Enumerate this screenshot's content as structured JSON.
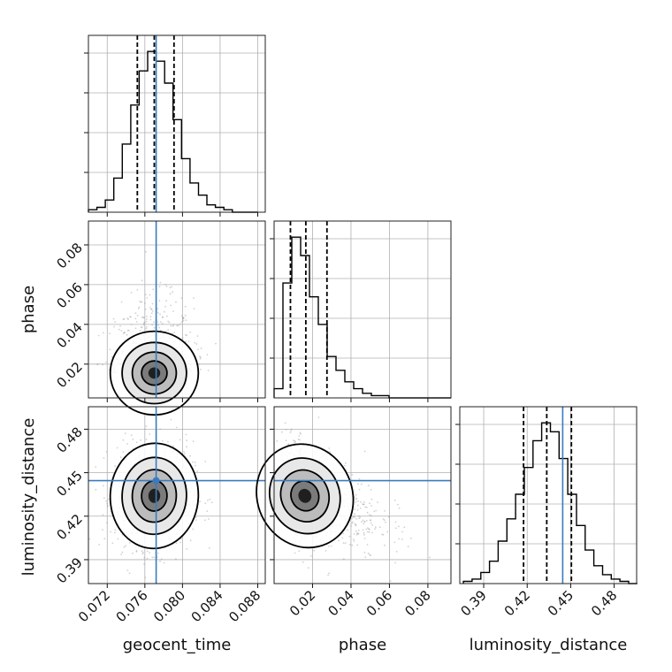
{
  "chart_data": {
    "type": "corner",
    "parameters": [
      "geocent_time",
      "phase",
      "luminosity_distance"
    ],
    "truths": [
      0.0772,
      null,
      0.4445
    ],
    "truth_color": "#3a7bbf",
    "grid": true,
    "histograms": [
      {
        "parameter": "geocent_time",
        "range": [
          0.07,
          0.0888
        ],
        "ticks": [
          0.072,
          0.076,
          0.08,
          0.084,
          0.088
        ],
        "tick_labels": [
          "0.072",
          "0.076",
          "0.080",
          "0.084",
          "0.088"
        ],
        "quantiles": [
          0.0752,
          0.077,
          0.0791
        ],
        "bin_edges": [
          0.07,
          0.0709,
          0.0718,
          0.0727,
          0.0736,
          0.0745,
          0.0754,
          0.0763,
          0.0772,
          0.0781,
          0.079,
          0.0799,
          0.0808,
          0.0817,
          0.0826,
          0.0835,
          0.0844,
          0.0853,
          0.0862,
          0.0871,
          0.088
        ],
        "counts": [
          1,
          2,
          5,
          14,
          28,
          44,
          58,
          66,
          62,
          53,
          38,
          22,
          12,
          7,
          3,
          2,
          1,
          0,
          0,
          0
        ]
      },
      {
        "parameter": "phase",
        "range": [
          0.0,
          0.092
        ],
        "ticks": [
          0.02,
          0.04,
          0.06,
          0.08
        ],
        "tick_labels": [
          "0.02",
          "0.04",
          "0.06",
          "0.08"
        ],
        "quantiles": [
          0.0085,
          0.0165,
          0.0275
        ],
        "bin_edges": [
          0.0,
          0.0046,
          0.0092,
          0.0138,
          0.0184,
          0.023,
          0.0276,
          0.0322,
          0.0368,
          0.0414,
          0.046,
          0.0506,
          0.0552,
          0.0598,
          0.0644,
          0.069,
          0.0736,
          0.0782,
          0.0828,
          0.0874,
          0.092
        ],
        "counts": [
          4,
          50,
          70,
          62,
          44,
          32,
          18,
          12,
          7,
          4,
          2,
          1,
          1,
          0,
          0,
          0,
          0,
          0,
          0,
          0
        ]
      },
      {
        "parameter": "luminosity_distance",
        "range": [
          0.3735,
          0.4955
        ],
        "ticks": [
          0.39,
          0.42,
          0.45,
          0.48
        ],
        "tick_labels": [
          "0.39",
          "0.42",
          "0.45",
          "0.48"
        ],
        "quantiles": [
          0.4175,
          0.4335,
          0.4505
        ],
        "bin_edges": [
          0.376,
          0.382,
          0.388,
          0.394,
          0.4,
          0.406,
          0.412,
          0.418,
          0.424,
          0.43,
          0.436,
          0.442,
          0.448,
          0.454,
          0.46,
          0.466,
          0.472,
          0.478,
          0.484,
          0.49,
          0.496
        ],
        "counts": [
          1,
          2,
          5,
          10,
          19,
          29,
          40,
          52,
          64,
          72,
          68,
          56,
          40,
          26,
          15,
          8,
          4,
          2,
          1,
          0
        ]
      }
    ],
    "pairs": [
      {
        "x": "geocent_time",
        "y": "phase",
        "x_range": [
          0.07,
          0.0888
        ],
        "y_range": [
          0.003,
          0.092
        ],
        "y_ticks": [
          0.02,
          0.04,
          0.06,
          0.08
        ],
        "y_tick_labels": [
          "0.02",
          "0.04",
          "0.06",
          "0.08"
        ],
        "center": [
          0.077,
          0.0155
        ],
        "sigma": [
          0.0018,
          0.009
        ],
        "correlation": 0.0
      },
      {
        "x": "geocent_time",
        "y": "luminosity_distance",
        "x_range": [
          0.07,
          0.0888
        ],
        "y_range": [
          0.3735,
          0.4955
        ],
        "y_ticks": [
          0.39,
          0.42,
          0.45,
          0.48
        ],
        "y_tick_labels": [
          "0.39",
          "0.42",
          "0.45",
          "0.48"
        ],
        "center": [
          0.077,
          0.434
        ],
        "sigma": [
          0.0018,
          0.0155
        ],
        "correlation": 0.05
      },
      {
        "x": "phase",
        "y": "luminosity_distance",
        "x_range": [
          0.0,
          0.092
        ],
        "y_range": [
          0.3735,
          0.4955
        ],
        "center": [
          0.016,
          0.434
        ],
        "sigma": [
          0.0095,
          0.0155
        ],
        "correlation": -0.45
      }
    ],
    "axis_labels": {
      "bottom": [
        "geocent_time",
        "phase",
        "luminosity_distance"
      ],
      "left": [
        "phase",
        "luminosity_distance"
      ]
    }
  }
}
